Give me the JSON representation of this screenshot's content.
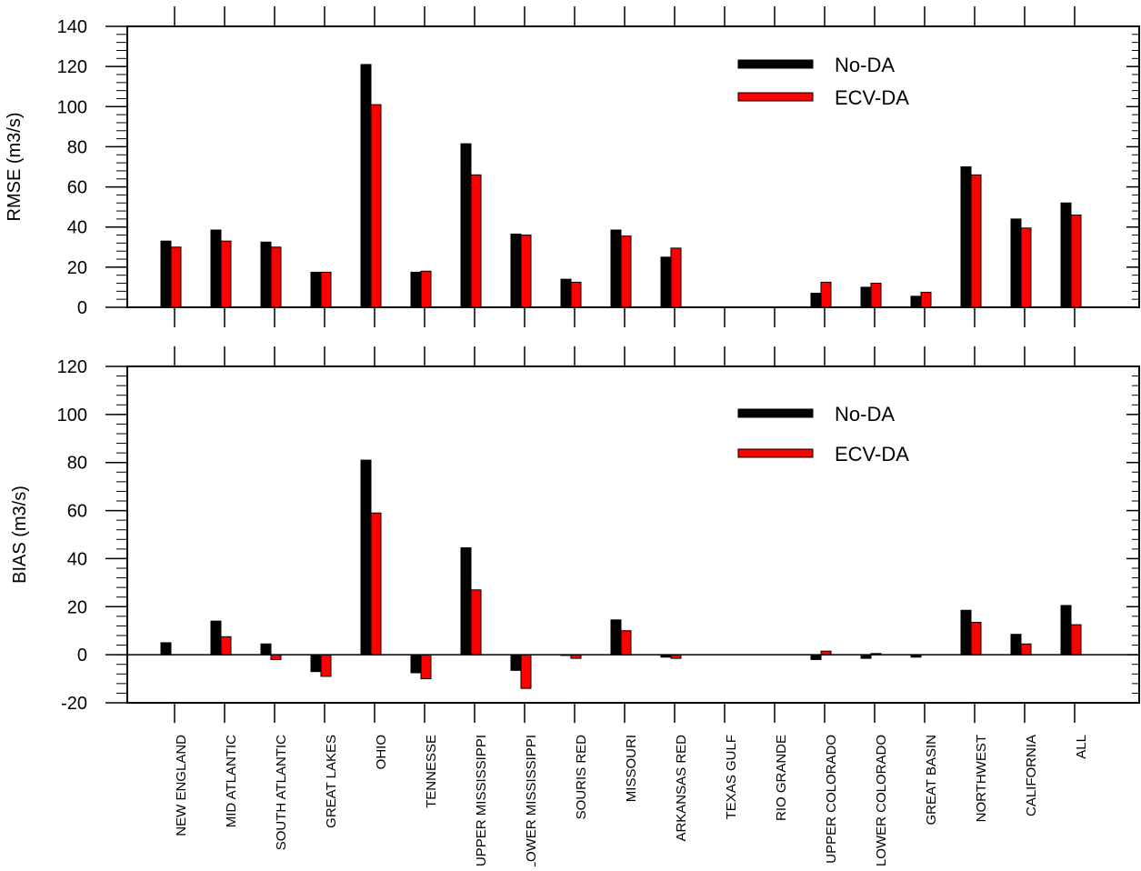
{
  "chart_data": [
    {
      "type": "bar",
      "ylabel": "RMSE (m3/s)",
      "ylim": [
        0,
        140
      ],
      "yticks": [
        0,
        20,
        40,
        60,
        80,
        100,
        120,
        140
      ],
      "ytick_labels": [
        "0",
        "20",
        "40",
        "60",
        "80",
        "100",
        "120",
        "140"
      ],
      "categories": [
        "NEW ENGLAND",
        "MID ATLANTIC",
        "SOUTH ATLANTIC",
        "GREAT LAKES",
        "OHIO",
        "TENNESSE",
        "UPPER MISSISSIPPI",
        "LOWER MISSISSIPPI",
        "SOURIS RED",
        "MISSOURI",
        "ARKANSAS RED",
        "TEXAS GULF",
        "RIO GRANDE",
        "UPPER COLORADO",
        "LOWER COLORADO",
        "GREAT BASIN",
        "NORTHWEST",
        "CALIFORNIA",
        "ALL"
      ],
      "series": [
        {
          "name": "No-DA",
          "color": "#000000",
          "values": [
            33,
            38.5,
            32.5,
            17.5,
            121,
            17.5,
            81.5,
            36.5,
            14,
            38.5,
            25,
            0,
            0,
            7,
            10,
            5.5,
            70,
            44,
            52
          ]
        },
        {
          "name": "ECV-DA",
          "color": "#ff0000",
          "values": [
            30,
            33,
            30,
            17.5,
            101,
            18,
            66,
            36,
            12.5,
            35.5,
            29.5,
            0,
            0,
            12.5,
            12,
            7.5,
            66,
            39.5,
            46
          ]
        }
      ],
      "legend": "top-right",
      "grid": false
    },
    {
      "type": "bar",
      "ylabel": "BIAS (m3/s)",
      "ylim": [
        -20,
        120
      ],
      "yticks": [
        -20,
        0,
        20,
        40,
        60,
        80,
        100,
        120
      ],
      "ytick_labels": [
        "-20",
        "0",
        "20",
        "40",
        "60",
        "80",
        "100",
        "120"
      ],
      "categories": [
        "NEW ENGLAND",
        "MID ATLANTIC",
        "SOUTH ATLANTIC",
        "GREAT LAKES",
        "OHIO",
        "TENNESSE",
        "UPPER MISSISSIPPI",
        "LOWER MISSISSIPPI",
        "SOURIS RED",
        "MISSOURI",
        "ARKANSAS RED",
        "TEXAS GULF",
        "RIO GRANDE",
        "UPPER COLORADO",
        "LOWER COLORADO",
        "GREAT BASIN",
        "NORTHWEST",
        "CALIFORNIA",
        "ALL"
      ],
      "series": [
        {
          "name": "No-DA",
          "color": "#000000",
          "values": [
            5,
            14,
            4.5,
            -7,
            81,
            -7.5,
            44.5,
            -6.5,
            -0.3,
            14.5,
            -1,
            0,
            0,
            -2,
            -1.5,
            -1,
            18.5,
            8.5,
            20.5
          ]
        },
        {
          "name": "ECV-DA",
          "color": "#ff0000",
          "values": [
            0,
            7.5,
            -2,
            -9,
            59,
            -10,
            27,
            -14,
            -1.5,
            10,
            -1.5,
            0,
            0,
            1.5,
            0.5,
            0,
            13.5,
            4.5,
            12.5
          ]
        }
      ],
      "legend": "top-right",
      "grid": false
    }
  ]
}
